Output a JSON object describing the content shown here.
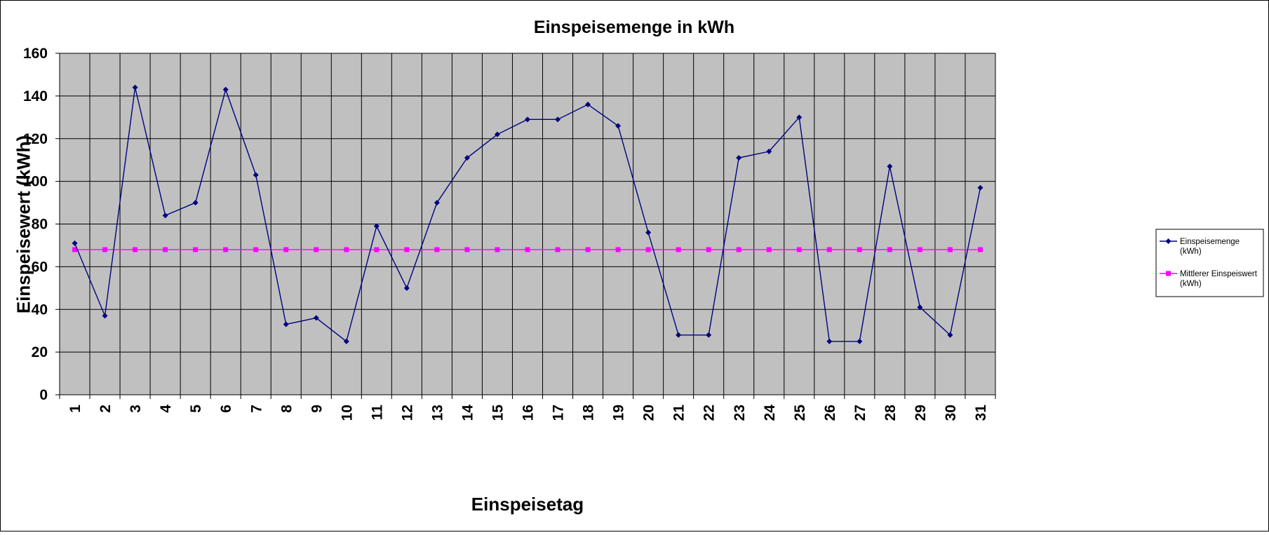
{
  "chart_data": {
    "type": "line",
    "title": "Einspeisemenge in kWh",
    "xlabel": "Einspeisetag",
    "ylabel": "Einspeisewert  (kWh)",
    "ylim": [
      0,
      160
    ],
    "yticks": [
      0,
      20,
      40,
      60,
      80,
      100,
      120,
      140,
      160
    ],
    "grid": true,
    "legend_position": "right",
    "categories": [
      "1",
      "2",
      "3",
      "4",
      "5",
      "6",
      "7",
      "8",
      "9",
      "10",
      "11",
      "12",
      "13",
      "14",
      "15",
      "16",
      "17",
      "18",
      "19",
      "20",
      "21",
      "22",
      "23",
      "24",
      "25",
      "26",
      "27",
      "28",
      "29",
      "30",
      "31"
    ],
    "series": [
      {
        "name": "Einspeisemenge (kWh)",
        "legend_lines": [
          "Einspeisemenge",
          "(kWh)"
        ],
        "color": "#000080",
        "marker": "diamond",
        "values": [
          71,
          37,
          144,
          84,
          90,
          143,
          103,
          33,
          36,
          25,
          79,
          50,
          90,
          111,
          122,
          129,
          129,
          136,
          126,
          76,
          28,
          28,
          111,
          114,
          130,
          25,
          25,
          107,
          41,
          28,
          97
        ]
      },
      {
        "name": "Mittlerer Einspeiswert (kWh)",
        "legend_lines": [
          "Mittlerer Einspeiswert",
          "(kWh)"
        ],
        "color": "#FF00FF",
        "marker": "square",
        "values": [
          68,
          68,
          68,
          68,
          68,
          68,
          68,
          68,
          68,
          68,
          68,
          68,
          68,
          68,
          68,
          68,
          68,
          68,
          68,
          68,
          68,
          68,
          68,
          68,
          68,
          68,
          68,
          68,
          68,
          68,
          68
        ]
      }
    ],
    "plot_background": "#C0C0C0"
  }
}
